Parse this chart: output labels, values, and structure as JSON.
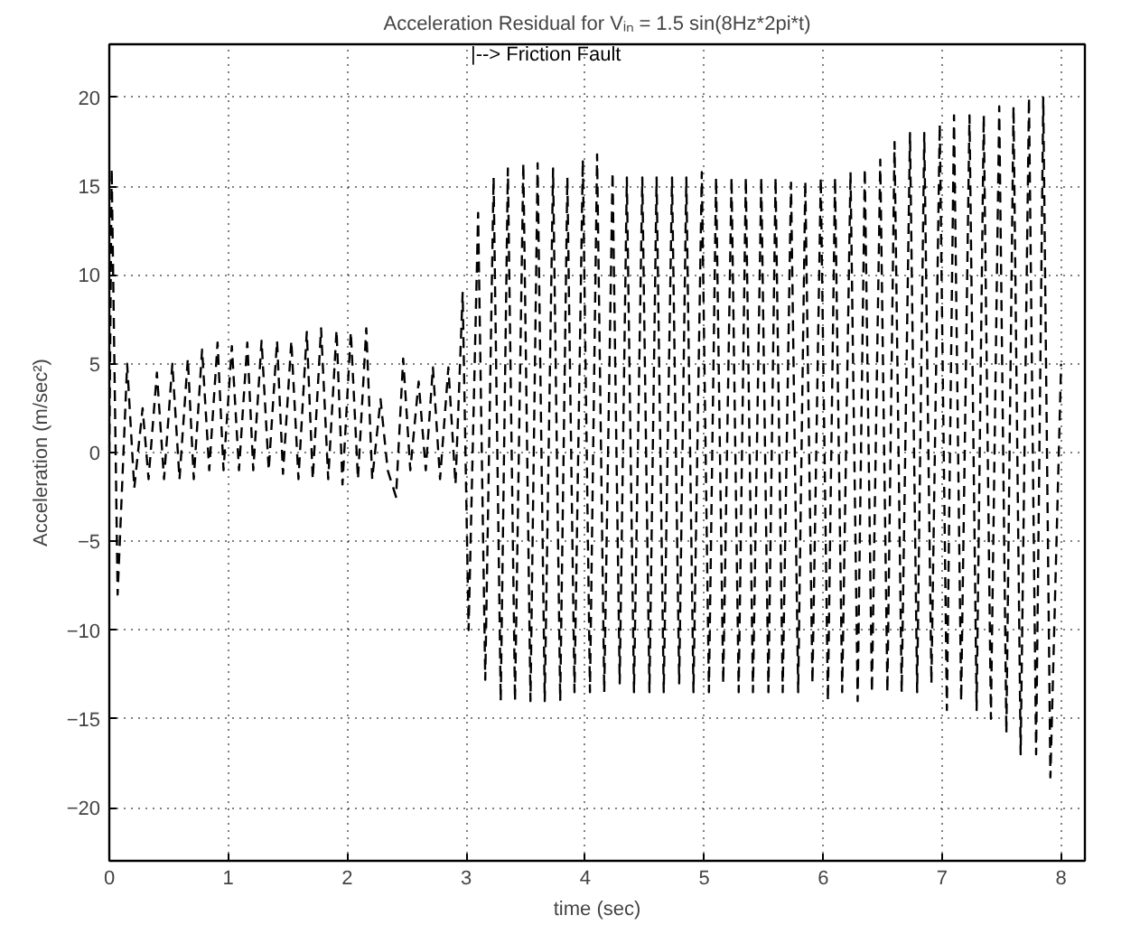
{
  "chart_data": {
    "type": "line",
    "title": "Acceleration Residual for Vᵢₙ = 1.5 sin(8Hz*2pi*t)",
    "xlabel": "time (sec)",
    "ylabel": "Acceleration (m/sec²)",
    "x": [
      0,
      0.02,
      0.07,
      0.15,
      0.21,
      0.28,
      0.33,
      0.4,
      0.46,
      0.53,
      0.59,
      0.66,
      0.71,
      0.78,
      0.84,
      0.91,
      0.96,
      1.03,
      1.09,
      1.16,
      1.21,
      1.28,
      1.34,
      1.41,
      1.46,
      1.53,
      1.59,
      1.66,
      1.71,
      1.78,
      1.84,
      1.91,
      1.96,
      2.03,
      2.09,
      2.16,
      2.21,
      2.28,
      2.34,
      2.41,
      2.47,
      2.53,
      2.6,
      2.66,
      2.72,
      2.78,
      2.85,
      2.91,
      2.97,
      3.02,
      3.1,
      3.16,
      3.23,
      3.29,
      3.35,
      3.41,
      3.48,
      3.54,
      3.6,
      3.66,
      3.73,
      3.79,
      3.85,
      3.91,
      3.98,
      4.04,
      4.1,
      4.16,
      4.23,
      4.29,
      4.35,
      4.41,
      4.48,
      4.54,
      4.6,
      4.66,
      4.73,
      4.79,
      4.85,
      4.91,
      4.98,
      5.04,
      5.1,
      5.16,
      5.23,
      5.29,
      5.35,
      5.41,
      5.48,
      5.54,
      5.6,
      5.66,
      5.73,
      5.79,
      5.85,
      5.91,
      5.98,
      6.04,
      6.1,
      6.16,
      6.23,
      6.29,
      6.35,
      6.41,
      6.48,
      6.54,
      6.6,
      6.66,
      6.73,
      6.79,
      6.85,
      6.91,
      6.98,
      7.04,
      7.1,
      7.16,
      7.23,
      7.29,
      7.35,
      7.41,
      7.48,
      7.54,
      7.6,
      7.66,
      7.73,
      7.79,
      7.85,
      7.91,
      8.0
    ],
    "series": [
      {
        "color": "#000000",
        "values": [
          0,
          16,
          -8,
          5,
          -2,
          2.5,
          -1.5,
          4.5,
          -1.5,
          5,
          -1.5,
          5.3,
          -1.5,
          5.8,
          -1,
          6.2,
          -1,
          6,
          -1,
          6.2,
          -1,
          6.3,
          -1,
          6.3,
          -1.2,
          6.3,
          -1.5,
          6.8,
          -1.5,
          7,
          -1.5,
          6.9,
          -1.8,
          6.8,
          -1.5,
          7,
          -1.5,
          3,
          -1,
          -2.5,
          5.3,
          -1,
          4,
          -1,
          4.8,
          -1.5,
          4.8,
          -1.8,
          9,
          -10,
          13.5,
          -12.8,
          15.5,
          -14,
          16,
          -14,
          16.3,
          -14,
          16.3,
          -14,
          16,
          -14,
          15.5,
          -13.5,
          16.5,
          -13.5,
          16.8,
          -13.5,
          15.8,
          -13,
          15.5,
          -13.5,
          15.5,
          -13.5,
          15.5,
          -13.5,
          15.5,
          -13,
          15.5,
          -13.5,
          15.8,
          -13.5,
          15.5,
          -13,
          15.5,
          -13.5,
          15.5,
          -13.5,
          15.5,
          -13.5,
          15.5,
          -13.5,
          15.2,
          -13.5,
          15.3,
          -13,
          15.5,
          -14,
          15.5,
          -13.5,
          15.8,
          -14,
          16,
          -13.5,
          16.5,
          -13.5,
          17.5,
          -13.5,
          18,
          -13.5,
          18,
          -13,
          18.5,
          -14.5,
          19,
          -14,
          19,
          -14.5,
          19,
          -15,
          19.5,
          -15.8,
          19.5,
          -17,
          20,
          -17,
          20,
          -18.3,
          5
        ]
      }
    ],
    "xlim": [
      0,
      8.2
    ],
    "ylim": [
      -23,
      23
    ],
    "xticks": [
      0,
      1,
      2,
      3,
      4,
      5,
      6,
      7,
      8
    ],
    "yticks": [
      -20,
      -15,
      -10,
      -5,
      0,
      5,
      10,
      15,
      20
    ],
    "grid": true,
    "line_style": "dashed",
    "annotations": [
      "|--> Friction Fault"
    ]
  }
}
